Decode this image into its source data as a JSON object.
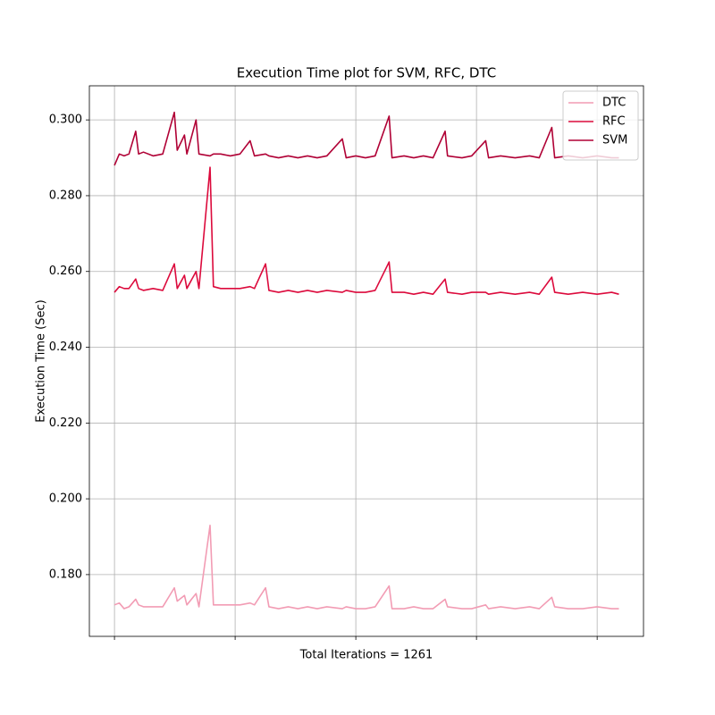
{
  "chart_data": {
    "type": "line",
    "title": "Execution Time plot for SVM, RFC, DTC",
    "x_label": "Total Iterations = 1261",
    "y_label": "Execution Time (Sec)",
    "x": [
      0,
      10,
      20,
      30,
      44,
      50,
      60,
      80,
      100,
      124,
      130,
      145,
      150,
      169,
      175,
      198,
      205,
      220,
      240,
      260,
      281,
      290,
      313,
      320,
      340,
      360,
      380,
      400,
      420,
      440,
      472,
      480,
      500,
      520,
      540,
      569,
      575,
      600,
      620,
      640,
      660,
      685,
      690,
      720,
      740,
      769,
      775,
      800,
      830,
      860,
      880,
      906,
      912,
      940,
      970,
      1000,
      1030,
      1045
    ],
    "series": [
      {
        "name": "DTC",
        "color": "#f29cb4",
        "values": [
          0.172,
          0.1725,
          0.171,
          0.1715,
          0.1735,
          0.172,
          0.1715,
          0.1715,
          0.1715,
          0.1765,
          0.173,
          0.1745,
          0.172,
          0.175,
          0.1715,
          0.193,
          0.172,
          0.172,
          0.172,
          0.172,
          0.1725,
          0.172,
          0.1765,
          0.1715,
          0.171,
          0.1715,
          0.171,
          0.1715,
          0.171,
          0.1715,
          0.171,
          0.1715,
          0.171,
          0.171,
          0.1715,
          0.177,
          0.171,
          0.171,
          0.1715,
          0.171,
          0.171,
          0.1735,
          0.1715,
          0.171,
          0.171,
          0.172,
          0.171,
          0.1715,
          0.171,
          0.1715,
          0.171,
          0.174,
          0.1715,
          0.171,
          0.171,
          0.1715,
          0.171,
          0.171
        ]
      },
      {
        "name": "RFC",
        "color": "#dc0a3c",
        "values": [
          0.2545,
          0.256,
          0.2555,
          0.2555,
          0.258,
          0.2555,
          0.255,
          0.2555,
          0.255,
          0.262,
          0.2555,
          0.259,
          0.2555,
          0.26,
          0.2555,
          0.2875,
          0.256,
          0.2555,
          0.2555,
          0.2555,
          0.256,
          0.2555,
          0.262,
          0.255,
          0.2545,
          0.255,
          0.2545,
          0.255,
          0.2545,
          0.255,
          0.2545,
          0.255,
          0.2545,
          0.2545,
          0.255,
          0.2625,
          0.2545,
          0.2545,
          0.254,
          0.2545,
          0.254,
          0.258,
          0.2545,
          0.254,
          0.2545,
          0.2545,
          0.254,
          0.2545,
          0.254,
          0.2545,
          0.254,
          0.2585,
          0.2545,
          0.254,
          0.2545,
          0.254,
          0.2545,
          0.254
        ]
      },
      {
        "name": "SVM",
        "color": "#b00035",
        "values": [
          0.288,
          0.291,
          0.2905,
          0.291,
          0.297,
          0.291,
          0.2915,
          0.2905,
          0.291,
          0.302,
          0.292,
          0.296,
          0.291,
          0.3,
          0.291,
          0.2905,
          0.291,
          0.291,
          0.2905,
          0.291,
          0.2945,
          0.2905,
          0.291,
          0.2905,
          0.29,
          0.2905,
          0.29,
          0.2905,
          0.29,
          0.2905,
          0.295,
          0.29,
          0.2905,
          0.29,
          0.2905,
          0.301,
          0.29,
          0.2905,
          0.29,
          0.2905,
          0.29,
          0.297,
          0.2905,
          0.29,
          0.2905,
          0.2945,
          0.29,
          0.2905,
          0.29,
          0.2905,
          0.29,
          0.298,
          0.29,
          0.2905,
          0.29,
          0.2905,
          0.29,
          0.29
        ]
      }
    ],
    "xlim": [
      -52,
      1096
    ],
    "xticks": [
      0,
      250,
      500,
      750,
      1000
    ],
    "ylim": [
      0.1637,
      0.309
    ],
    "yticks": [
      {
        "value": 0.18,
        "label": "0.180"
      },
      {
        "value": 0.2,
        "label": "0.200"
      },
      {
        "value": 0.22,
        "label": "0.220"
      },
      {
        "value": 0.24,
        "label": "0.240"
      },
      {
        "value": 0.26,
        "label": "0.260"
      },
      {
        "value": 0.28,
        "label": "0.280"
      },
      {
        "value": 0.3,
        "label": "0.300"
      }
    ],
    "grid": true,
    "legend": "upper right"
  }
}
